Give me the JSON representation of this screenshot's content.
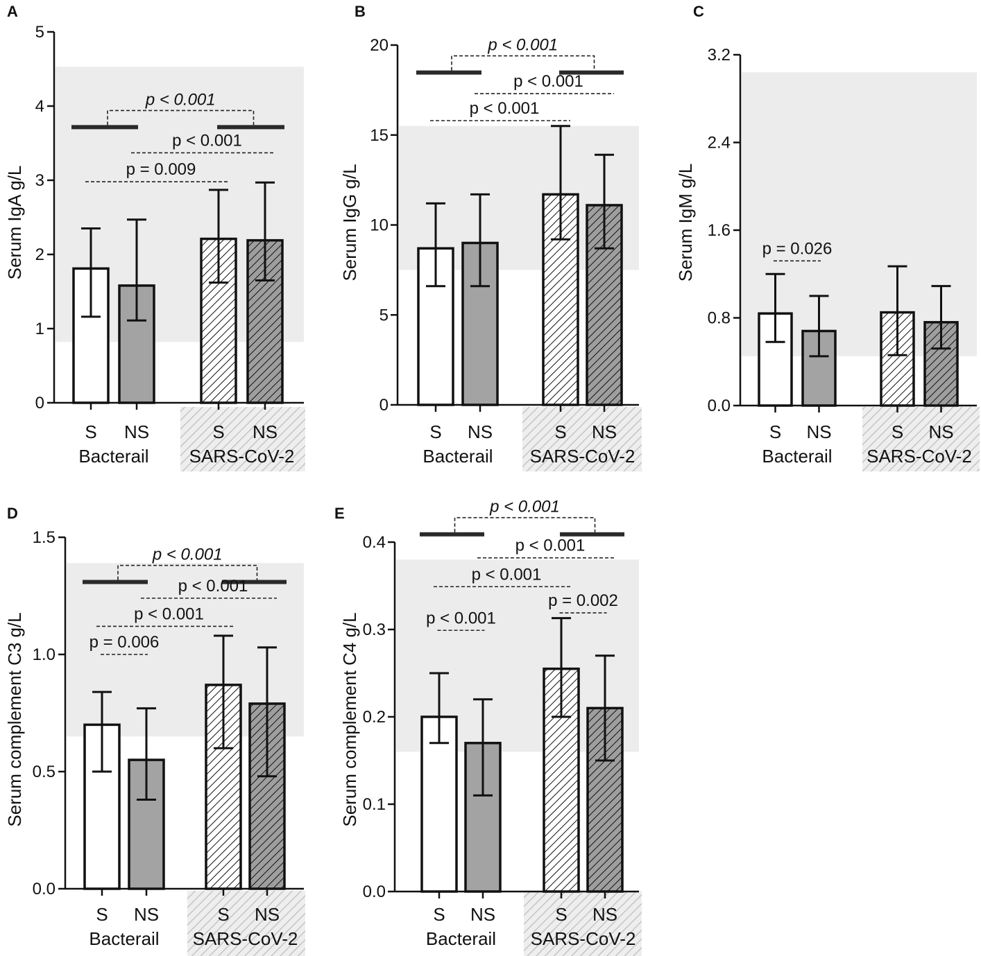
{
  "chart_data": [
    {
      "panel": "A",
      "type": "bar",
      "ylabel": "Serum IgA g/L",
      "ylim": [
        0,
        5
      ],
      "ticks": [
        0,
        1,
        2,
        3,
        4,
        5
      ],
      "reference_range": [
        0.82,
        4.53
      ],
      "categories": [
        "S",
        "NS",
        "S",
        "NS"
      ],
      "groups": [
        {
          "label": "Bacterail"
        },
        {
          "label": "SARS-CoV-2"
        }
      ],
      "values": [
        1.81,
        1.58,
        2.21,
        2.19
      ],
      "errors": [
        [
          1.16,
          2.35
        ],
        [
          1.11,
          2.47
        ],
        [
          1.62,
          2.87
        ],
        [
          1.65,
          2.97
        ]
      ],
      "annotations": [
        {
          "text": "p < 0.001",
          "italic": true,
          "from": 0,
          "to": 3,
          "y": 3.94,
          "style": "group"
        },
        {
          "text": "p < 0.001",
          "italic": false,
          "from": 1,
          "to": 3,
          "y": 3.37,
          "style": "line"
        },
        {
          "text": "p = 0.009",
          "italic": false,
          "from": 0,
          "to": 2,
          "y": 2.98,
          "style": "line"
        }
      ]
    },
    {
      "panel": "B",
      "type": "bar",
      "ylabel": "Serum IgG g/L",
      "ylim": [
        0,
        20
      ],
      "ticks": [
        0,
        5,
        10,
        15,
        20
      ],
      "reference_range": [
        7.5,
        15.5
      ],
      "categories": [
        "S",
        "NS",
        "S",
        "NS"
      ],
      "groups": [
        {
          "label": "Bacterail"
        },
        {
          "label": "SARS-CoV-2"
        }
      ],
      "values": [
        8.7,
        9.0,
        11.7,
        11.1
      ],
      "errors": [
        [
          6.6,
          11.2
        ],
        [
          6.6,
          11.7
        ],
        [
          9.2,
          15.5
        ],
        [
          8.7,
          13.9
        ]
      ],
      "annotations": [
        {
          "text": "p < 0.001",
          "italic": true,
          "from": 0,
          "to": 3,
          "y": 19.4,
          "style": "group"
        },
        {
          "text": "p < 0.001",
          "italic": false,
          "from": 1,
          "to": 3,
          "y": 17.3,
          "style": "line"
        },
        {
          "text": "p < 0.001",
          "italic": false,
          "from": 0,
          "to": 2,
          "y": 15.8,
          "style": "line"
        }
      ]
    },
    {
      "panel": "C",
      "type": "bar",
      "ylabel": "Serum IgM g/L",
      "ylim": [
        0,
        3.2
      ],
      "ticks": [
        "0.0",
        "0.8",
        "1.6",
        "2.4",
        "3.2"
      ],
      "reference_range": [
        0.45,
        3.04
      ],
      "categories": [
        "S",
        "NS",
        "S",
        "NS"
      ],
      "groups": [
        {
          "label": "Bacterail"
        },
        {
          "label": "SARS-CoV-2"
        }
      ],
      "values": [
        0.84,
        0.68,
        0.85,
        0.76
      ],
      "errors": [
        [
          0.58,
          1.2
        ],
        [
          0.45,
          1.0
        ],
        [
          0.46,
          1.27
        ],
        [
          0.52,
          1.09
        ]
      ],
      "annotations": [
        {
          "text": "p = 0.026",
          "italic": false,
          "from": 0,
          "to": 1,
          "y": 1.32,
          "style": "short"
        }
      ]
    },
    {
      "panel": "D",
      "type": "bar",
      "ylabel": "Serum complement C3 g/L",
      "ylim": [
        0,
        1.5
      ],
      "ticks": [
        "0.0",
        "0.5",
        "1.0",
        "1.5"
      ],
      "reference_range": [
        0.65,
        1.39
      ],
      "categories": [
        "S",
        "NS",
        "S",
        "NS"
      ],
      "groups": [
        {
          "label": "Bacterail"
        },
        {
          "label": "SARS-CoV-2"
        }
      ],
      "values": [
        0.7,
        0.55,
        0.87,
        0.79
      ],
      "errors": [
        [
          0.5,
          0.84
        ],
        [
          0.38,
          0.77
        ],
        [
          0.6,
          1.08
        ],
        [
          0.48,
          1.03
        ]
      ],
      "annotations": [
        {
          "text": "p < 0.001",
          "italic": true,
          "from": 0,
          "to": 3,
          "y": 1.38,
          "style": "group"
        },
        {
          "text": "p < 0.001",
          "italic": false,
          "from": 1,
          "to": 3,
          "y": 1.24,
          "style": "line"
        },
        {
          "text": "p < 0.001",
          "italic": false,
          "from": 0,
          "to": 2,
          "y": 1.12,
          "style": "line"
        },
        {
          "text": "p = 0.006",
          "italic": false,
          "from": 0,
          "to": 1,
          "y": 1.0,
          "style": "short"
        }
      ]
    },
    {
      "panel": "E",
      "type": "bar",
      "ylabel": "Serum complement C4 g/L",
      "ylim": [
        0,
        0.4
      ],
      "ticks": [
        "0.0",
        "0.1",
        "0.2",
        "0.3",
        "0.4"
      ],
      "reference_range": [
        0.16,
        0.38
      ],
      "categories": [
        "S",
        "NS",
        "S",
        "NS"
      ],
      "groups": [
        {
          "label": "Bacterail"
        },
        {
          "label": "SARS-CoV-2"
        }
      ],
      "values": [
        0.2,
        0.17,
        0.255,
        0.21
      ],
      "errors": [
        [
          0.17,
          0.25
        ],
        [
          0.11,
          0.22
        ],
        [
          0.2,
          0.313
        ],
        [
          0.15,
          0.27
        ]
      ],
      "annotations": [
        {
          "text": "p < 0.001",
          "italic": true,
          "from": 0,
          "to": 3,
          "y": 0.428,
          "style": "group"
        },
        {
          "text": "p < 0.001",
          "italic": false,
          "from": 1,
          "to": 3,
          "y": 0.382,
          "style": "line"
        },
        {
          "text": "p < 0.001",
          "italic": false,
          "from": 0,
          "to": 2,
          "y": 0.349,
          "style": "line"
        },
        {
          "text": "p < 0.001",
          "italic": false,
          "from": 0,
          "to": 1,
          "y": 0.299,
          "style": "short"
        },
        {
          "text": "p = 0.002",
          "italic": false,
          "from": 2,
          "to": 3,
          "y": 0.319,
          "style": "short"
        }
      ]
    }
  ]
}
